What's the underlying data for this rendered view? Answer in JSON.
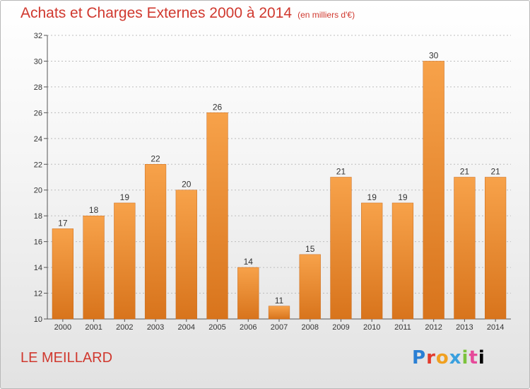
{
  "title": "Achats et Charges Externes 2000 à 2014",
  "unit": "(en milliers d'€)",
  "place": "LE MEILLARD",
  "logo": {
    "text": [
      "P",
      "r",
      "o",
      "x",
      "i",
      "t",
      "i"
    ]
  },
  "chart_data": {
    "type": "bar",
    "categories": [
      "2000",
      "2001",
      "2002",
      "2003",
      "2004",
      "2005",
      "2006",
      "2007",
      "2008",
      "2009",
      "2010",
      "2011",
      "2012",
      "2013",
      "2014"
    ],
    "values": [
      17,
      18,
      19,
      22,
      20,
      26,
      14,
      11,
      15,
      21,
      19,
      19,
      30,
      21,
      21
    ],
    "ylim": [
      10,
      32
    ],
    "yticks": [
      10,
      12,
      14,
      16,
      18,
      20,
      22,
      24,
      26,
      28,
      30,
      32
    ],
    "grid": true,
    "bar_color_top": "#f7a24a",
    "bar_color_bottom": "#d8741c"
  }
}
